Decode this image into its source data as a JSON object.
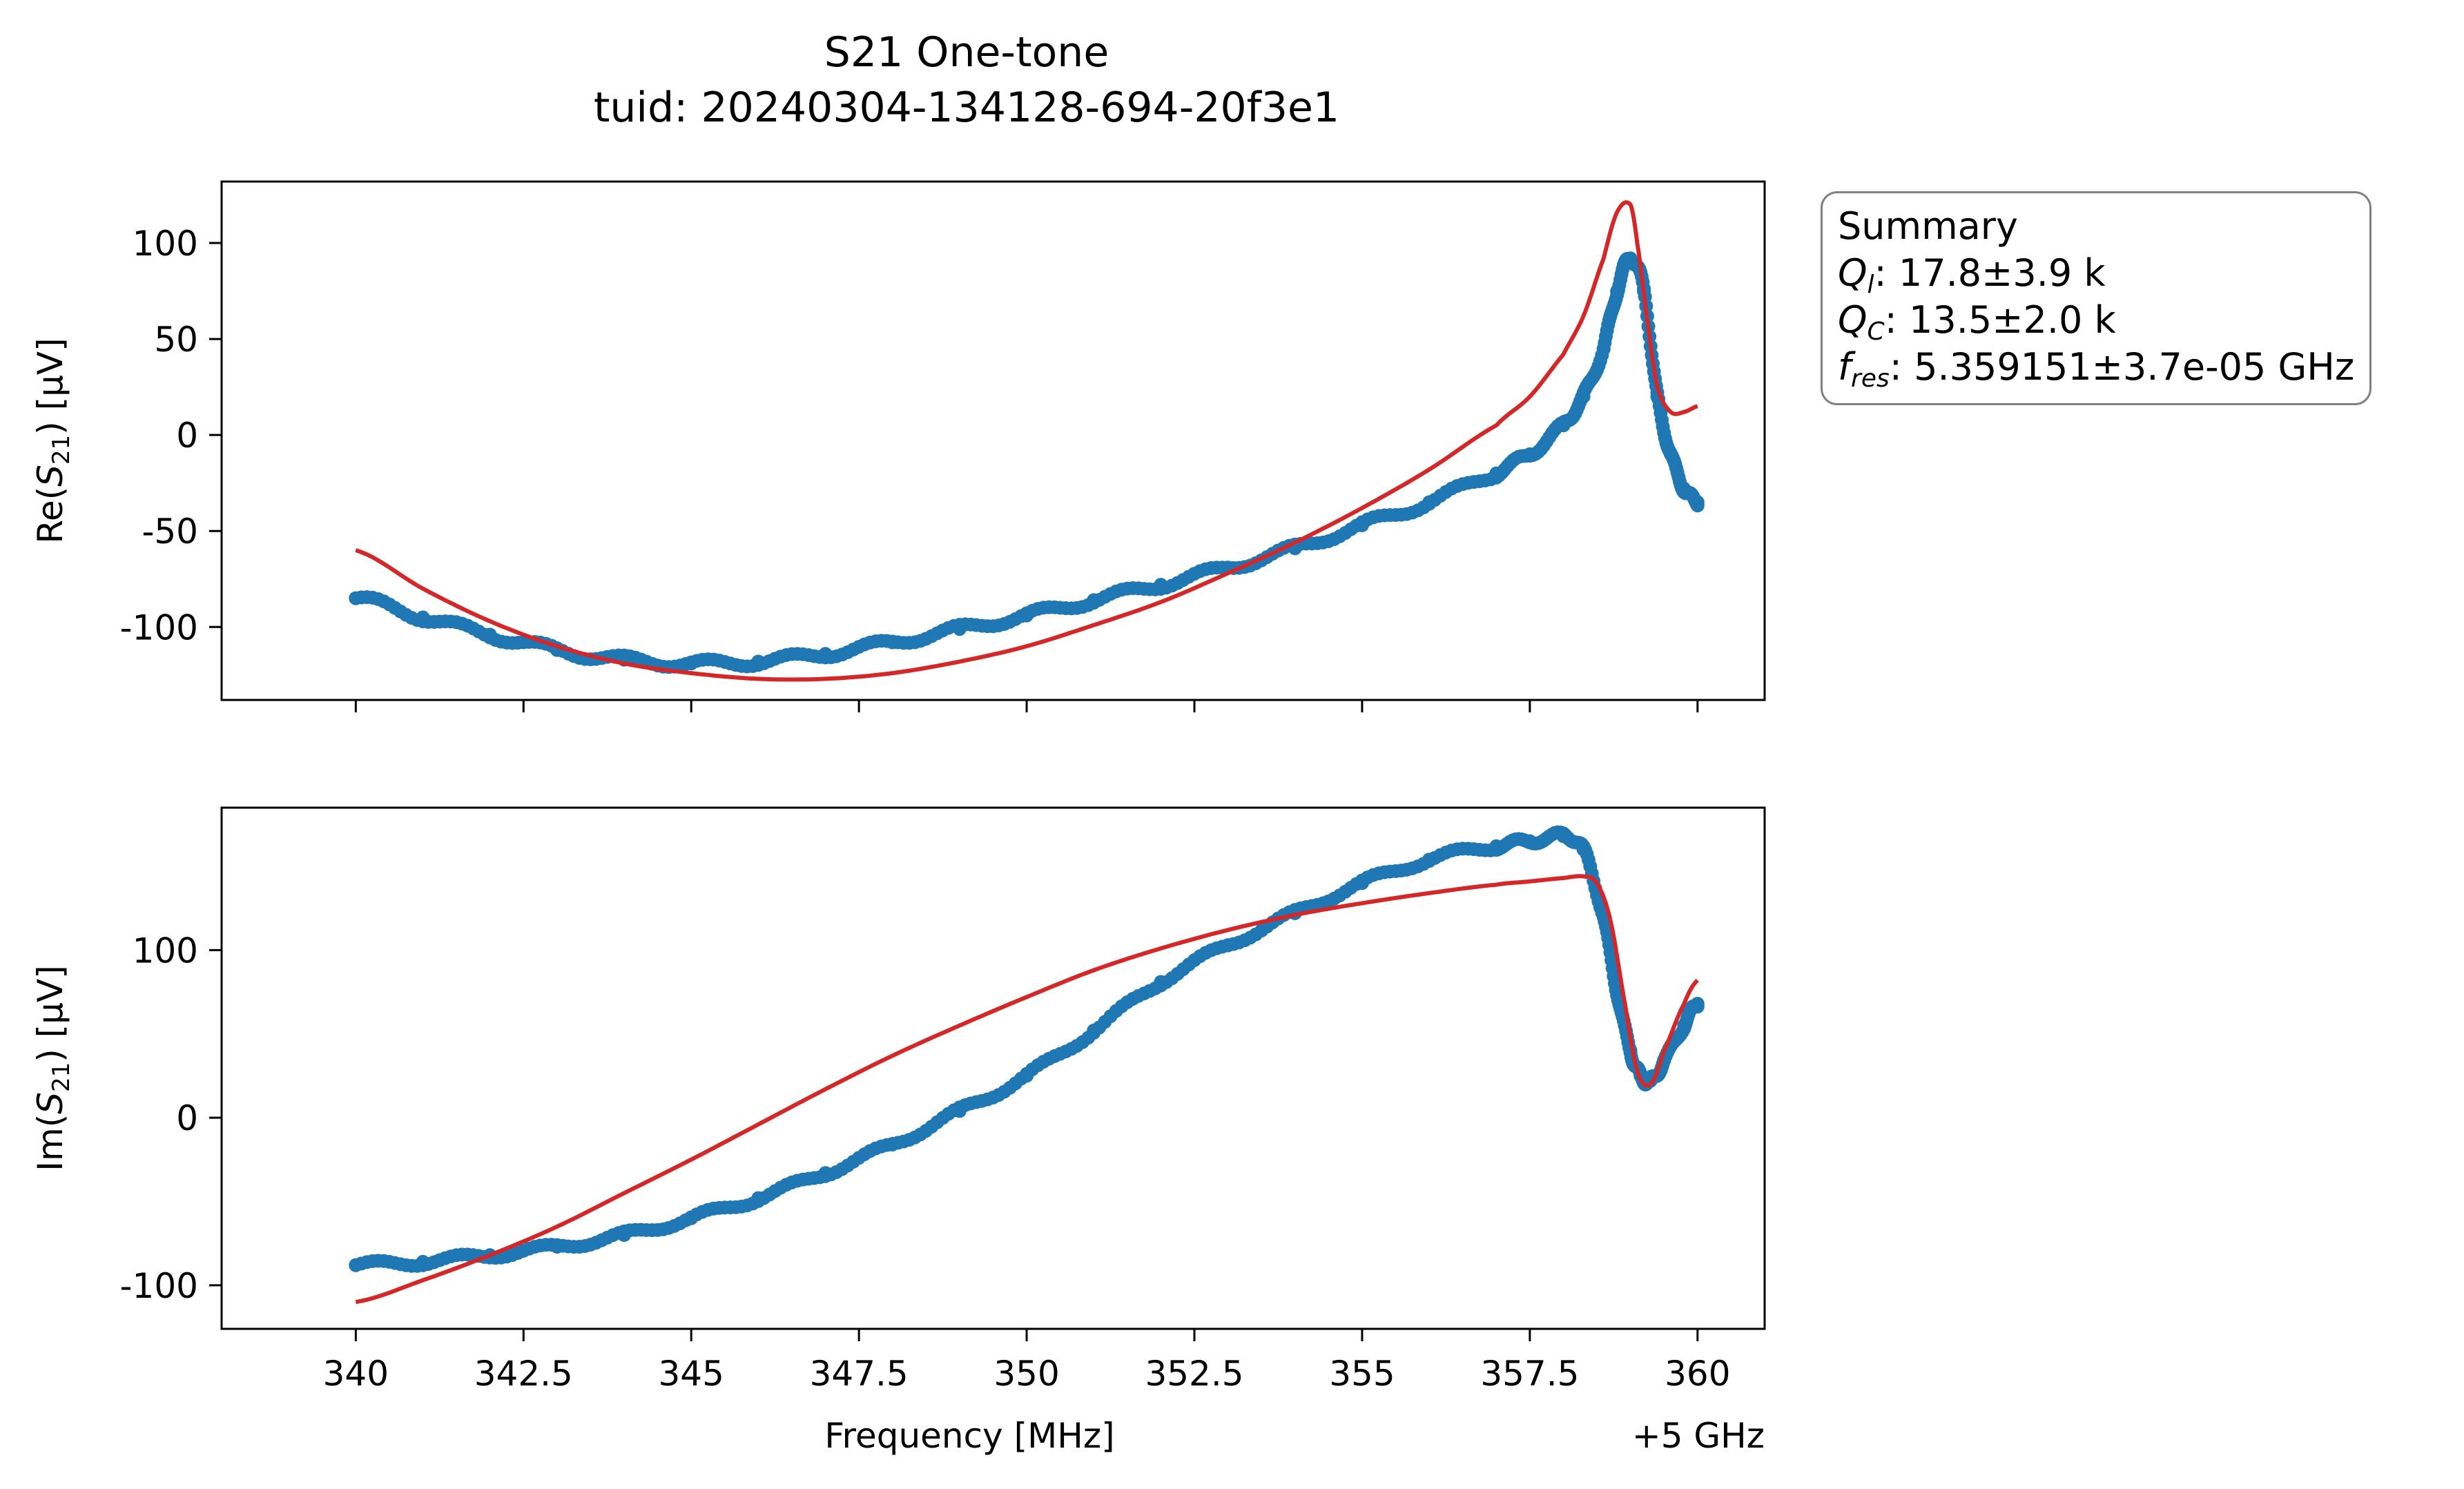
{
  "title": "S21 One-tone",
  "subtitle": "tuid: 20240304-134128-694-20f3e1",
  "summary": {
    "heading": "Summary",
    "rows": [
      {
        "sym": "Q",
        "sub": "l",
        "value": ": 17.8±3.9 k"
      },
      {
        "sym": "Q",
        "sub": "C",
        "value": ": 13.5±2.0 k"
      },
      {
        "sym": "f",
        "sub": "res",
        "value": ": 5.359151±3.7e-05 GHz"
      }
    ]
  },
  "colors": {
    "data": "#1f77b4",
    "fit": "#d62728"
  },
  "chart_data": [
    {
      "type": "line",
      "panel": "top",
      "ylabel": "Re(S21) [µV]",
      "xlabel": "",
      "xlim": [
        338.0,
        361.0
      ],
      "ylim": [
        -138,
        132
      ],
      "xticks": [
        340,
        342.5,
        345,
        347.5,
        350,
        352.5,
        355,
        357.5,
        360
      ],
      "xtick_labels_visible": false,
      "yticks": [
        100,
        50,
        0,
        -50,
        -100
      ],
      "ytick_labels": [
        "100",
        "50",
        "0",
        "-50",
        "-100"
      ],
      "series": [
        {
          "kind": "data",
          "x": [
            340,
            341,
            342,
            343,
            344,
            345,
            346,
            347,
            348,
            349,
            350,
            351,
            352,
            353,
            354,
            355,
            356,
            357,
            357.5,
            358,
            358.3,
            358.6,
            358.8,
            359.0,
            359.2,
            359.4,
            359.6,
            359.8,
            360
          ],
          "y": [
            -85,
            -95,
            -104,
            -112,
            -117,
            -119,
            -118,
            -114,
            -108,
            -101,
            -94,
            -86,
            -78,
            -69,
            -59,
            -47,
            -35,
            -20,
            -10,
            5,
            20,
            45,
            75,
            92,
            75,
            20,
            -10,
            -28,
            -35
          ]
        },
        {
          "kind": "fit",
          "x": [
            340,
            341,
            342,
            343,
            344,
            345,
            346,
            347,
            348,
            349,
            350,
            351,
            352,
            353,
            354,
            355,
            356,
            357,
            357.5,
            358,
            358.3,
            358.6,
            358.8,
            359.0,
            359.1,
            359.25,
            359.4,
            359.6,
            359.8,
            360
          ],
          "y": [
            -60,
            -80,
            -97,
            -110,
            -119,
            -124,
            -127,
            -127,
            -124,
            -118,
            -110,
            -99,
            -87,
            -72,
            -56,
            -38,
            -18,
            5,
            20,
            42,
            62,
            92,
            116,
            120,
            100,
            60,
            25,
            12,
            12,
            15
          ]
        }
      ]
    },
    {
      "type": "line",
      "panel": "bottom",
      "ylabel": "Im(S21) [µV]",
      "xlabel": "Frequency [MHz]",
      "x_offset_label": "+5 GHz",
      "xlim": [
        338.0,
        361.0
      ],
      "ylim": [
        -126,
        185
      ],
      "xticks": [
        340,
        342.5,
        345,
        347.5,
        350,
        352.5,
        355,
        357.5,
        360
      ],
      "xtick_labels": [
        "340",
        "342.5",
        "345",
        "347.5",
        "350",
        "352.5",
        "355",
        "357.5",
        "360"
      ],
      "yticks": [
        100,
        0,
        -100
      ],
      "ytick_labels": [
        "100",
        "0",
        "-100"
      ],
      "series": [
        {
          "kind": "data",
          "x": [
            340,
            341,
            342,
            343,
            344,
            345,
            346,
            347,
            348,
            349,
            350,
            351,
            352,
            353,
            354,
            355,
            356,
            357,
            357.5,
            358,
            358.3,
            358.6,
            358.8,
            359.0,
            359.15,
            359.3,
            359.5,
            359.8,
            360
          ],
          "y": [
            -88,
            -86,
            -82,
            -77,
            -70,
            -60,
            -48,
            -33,
            -16,
            4,
            25,
            52,
            81,
            103,
            122,
            140,
            154,
            162,
            165,
            168,
            160,
            120,
            75,
            40,
            25,
            22,
            34,
            55,
            68
          ]
        },
        {
          "kind": "fit",
          "x": [
            340,
            341,
            342,
            343,
            344,
            345,
            346,
            347,
            348,
            349,
            350,
            351,
            352,
            353,
            354,
            355,
            356,
            357,
            357.5,
            358,
            358.3,
            358.5,
            358.7,
            358.9,
            359.1,
            359.3,
            359.5,
            359.8,
            360
          ],
          "y": [
            -110,
            -97,
            -82,
            -65,
            -45,
            -25,
            -4,
            17,
            37,
            55,
            72,
            88,
            101,
            112,
            121,
            128,
            134,
            139,
            141,
            143,
            144,
            140,
            118,
            72,
            28,
            20,
            40,
            68,
            82
          ]
        }
      ]
    }
  ]
}
